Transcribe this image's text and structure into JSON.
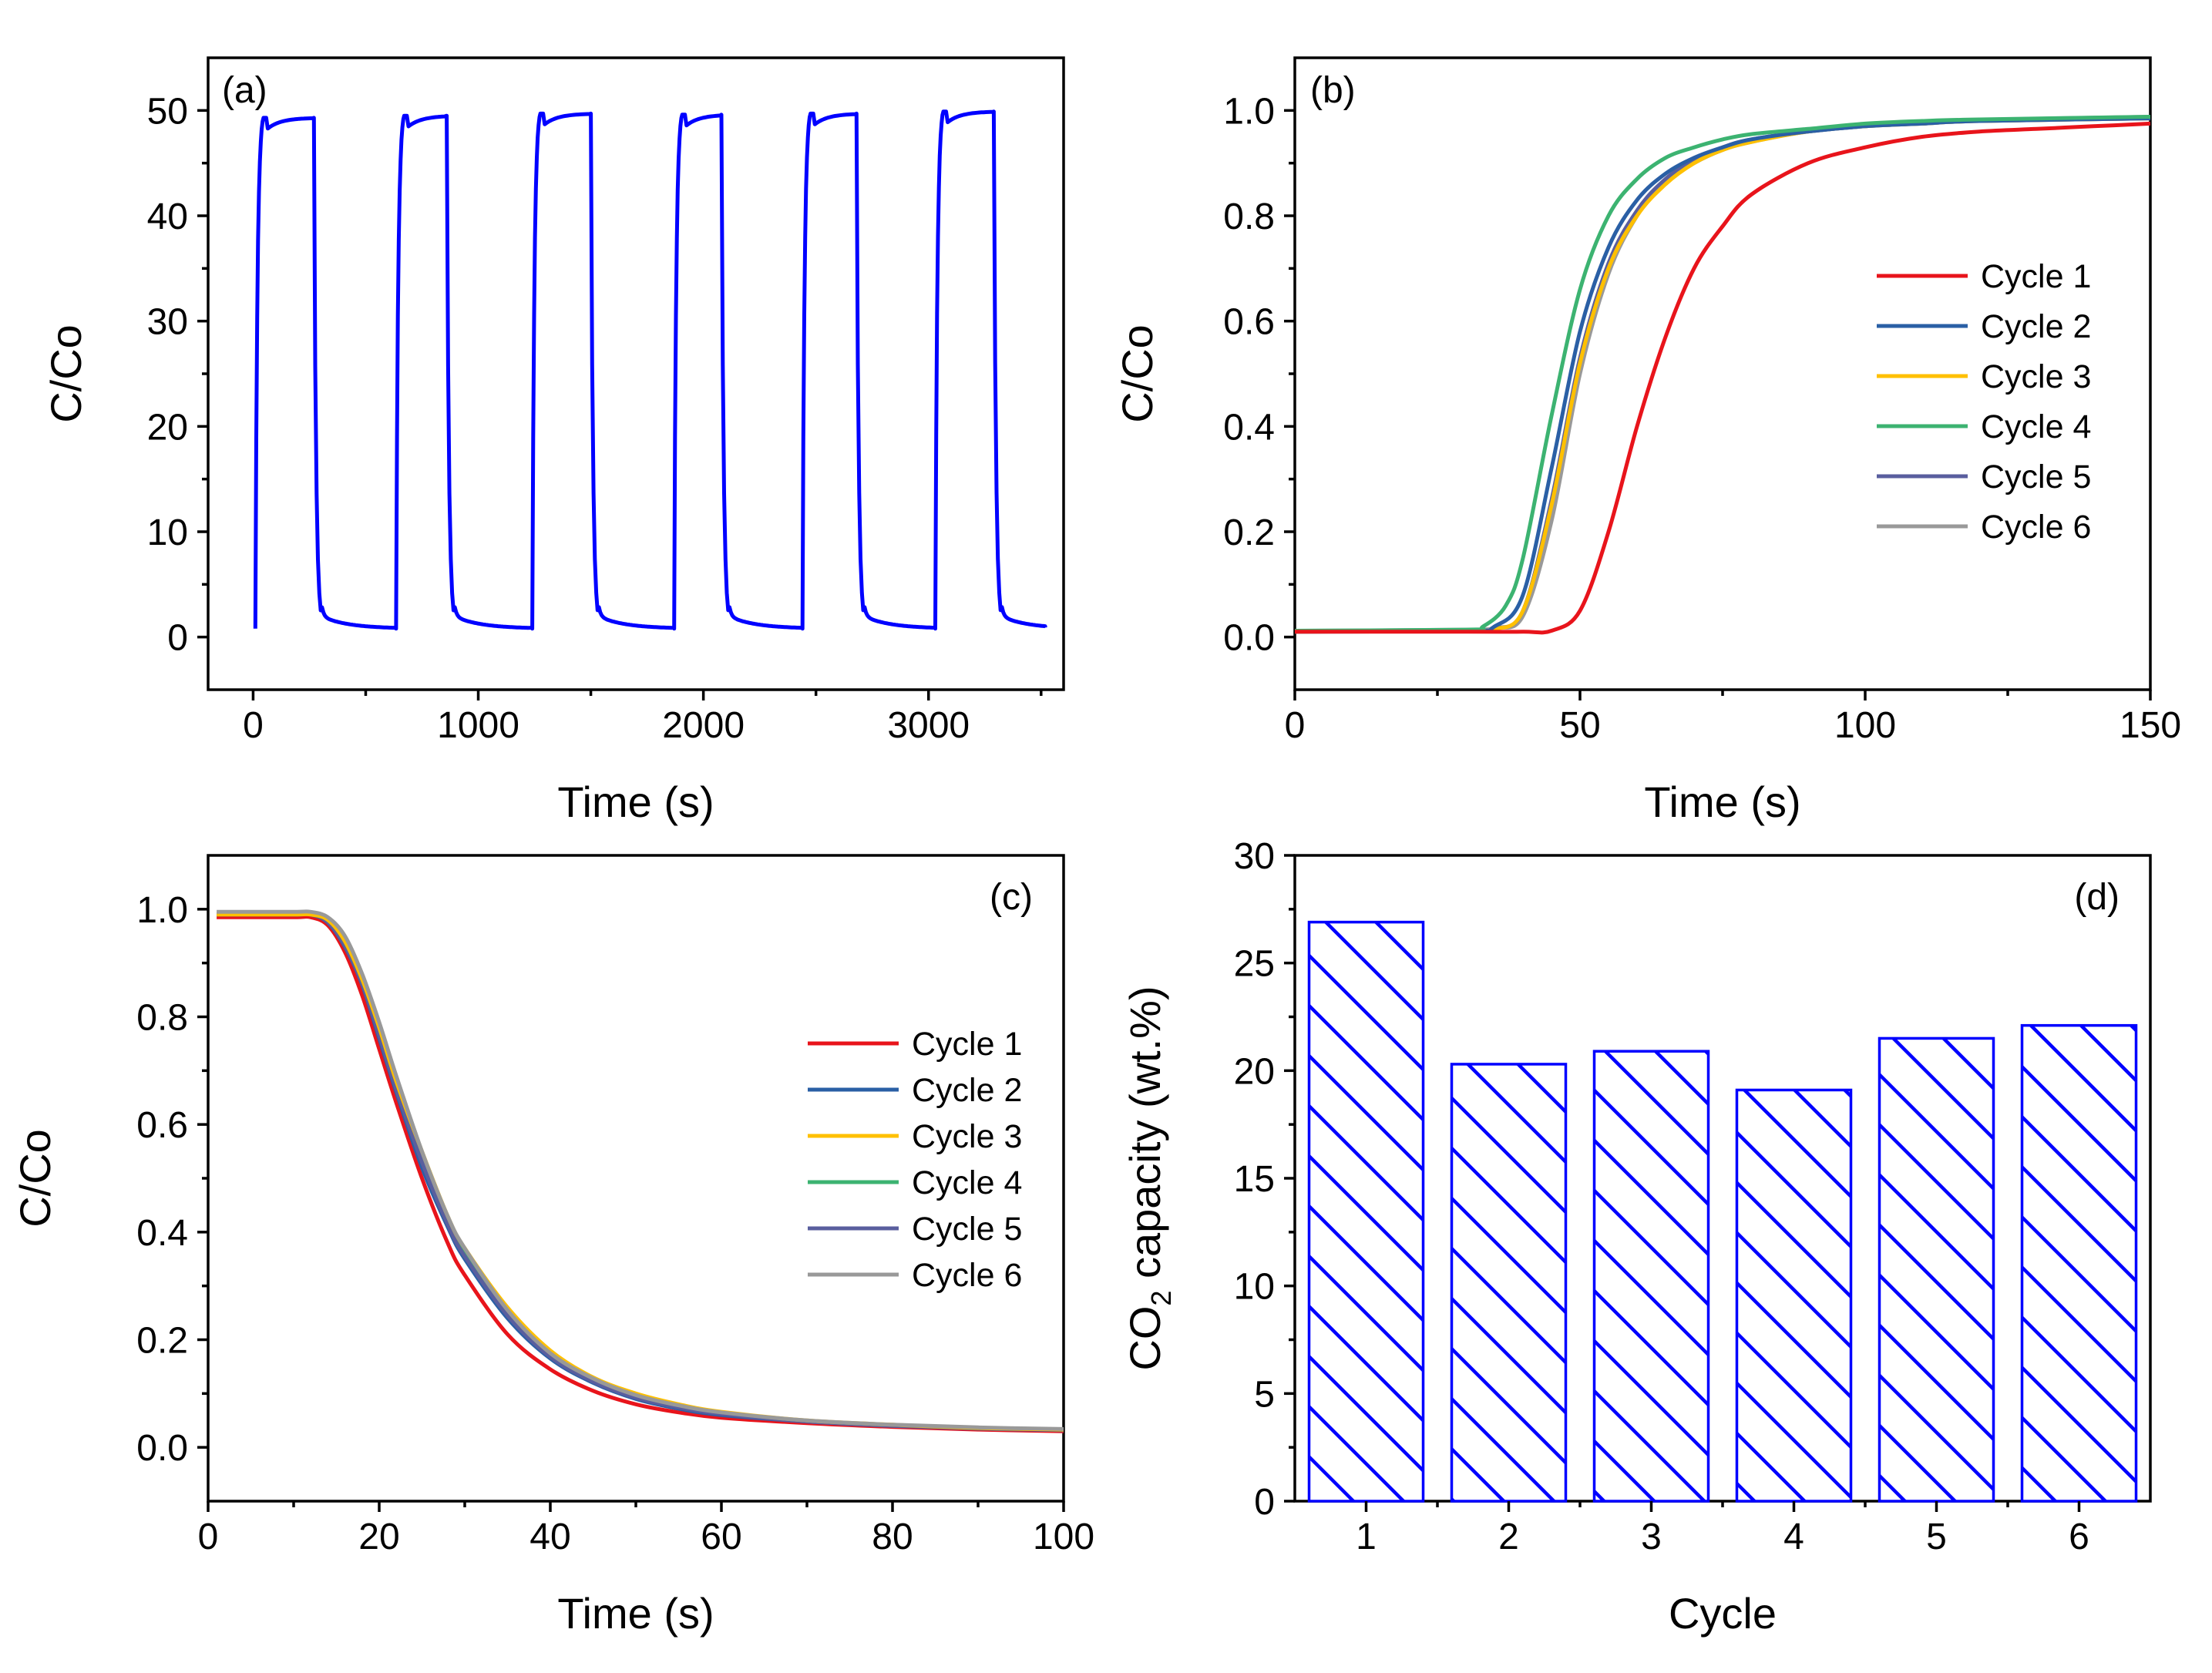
{
  "chart_data": [
    {
      "id": "a",
      "type": "line",
      "panel_label": "(a)",
      "xlabel": "Time (s)",
      "ylabel": "C/Co",
      "xlim": [
        -200,
        3600
      ],
      "ylim": [
        -5,
        55
      ],
      "xticks": [
        0,
        1000,
        2000,
        3000
      ],
      "yticks": [
        0,
        10,
        20,
        30,
        40,
        50
      ],
      "color": "#0000ff",
      "cycles": [
        {
          "start": 10,
          "end": 270,
          "plateau": 49.3
        },
        {
          "start": 635,
          "end": 860,
          "plateau": 49.5
        },
        {
          "start": 1240,
          "end": 1500,
          "plateau": 49.7
        },
        {
          "start": 1870,
          "end": 2080,
          "plateau": 49.6
        },
        {
          "start": 2440,
          "end": 2680,
          "plateau": 49.7
        },
        {
          "start": 3030,
          "end": 3290,
          "plateau": 49.9
        }
      ],
      "baseline": 0.8,
      "x_end": 3520
    },
    {
      "id": "b",
      "type": "line",
      "panel_label": "(b)",
      "xlabel": "Time (s)",
      "ylabel": "C/Co",
      "xlim": [
        0,
        150
      ],
      "ylim": [
        -0.1,
        1.1
      ],
      "xticks": [
        0,
        50,
        100,
        150
      ],
      "yticks": [
        0.0,
        0.2,
        0.4,
        0.6,
        0.8,
        1.0
      ],
      "legend_position": "center-right",
      "series": [
        {
          "name": "Cycle 1",
          "color": "#e8141b",
          "x": [
            0,
            30,
            40,
            45,
            50,
            55,
            60,
            65,
            70,
            75,
            80,
            90,
            100,
            110,
            120,
            130,
            140,
            150
          ],
          "y": [
            0.01,
            0.01,
            0.01,
            0.012,
            0.05,
            0.2,
            0.4,
            0.57,
            0.7,
            0.78,
            0.84,
            0.9,
            0.93,
            0.95,
            0.96,
            0.965,
            0.97,
            0.975
          ]
        },
        {
          "name": "Cycle 2",
          "color": "#2a5fa5",
          "x": [
            0,
            30,
            35,
            40,
            45,
            50,
            55,
            60,
            65,
            70,
            75,
            80,
            90,
            100,
            110,
            120,
            150
          ],
          "y": [
            0.01,
            0.012,
            0.02,
            0.08,
            0.32,
            0.58,
            0.74,
            0.83,
            0.88,
            0.91,
            0.93,
            0.945,
            0.96,
            0.97,
            0.975,
            0.98,
            0.985
          ]
        },
        {
          "name": "Cycle 3",
          "color": "#ffc000",
          "x": [
            0,
            30,
            35,
            40,
            45,
            50,
            55,
            60,
            65,
            70,
            75,
            80,
            90,
            100,
            110,
            120,
            150
          ],
          "y": [
            0.01,
            0.012,
            0.015,
            0.05,
            0.25,
            0.52,
            0.7,
            0.8,
            0.86,
            0.9,
            0.925,
            0.94,
            0.96,
            0.97,
            0.975,
            0.98,
            0.985
          ]
        },
        {
          "name": "Cycle 4",
          "color": "#3cb371",
          "x": [
            0,
            30,
            33,
            37,
            40,
            45,
            50,
            55,
            60,
            65,
            70,
            75,
            80,
            90,
            100,
            110,
            120,
            150
          ],
          "y": [
            0.012,
            0.014,
            0.02,
            0.06,
            0.15,
            0.42,
            0.66,
            0.8,
            0.87,
            0.91,
            0.93,
            0.945,
            0.955,
            0.965,
            0.975,
            0.98,
            0.983,
            0.988
          ]
        },
        {
          "name": "Cycle 5",
          "color": "#595e9e",
          "x": [
            0,
            30,
            35,
            40,
            45,
            50,
            55,
            60,
            65,
            70,
            75,
            80,
            90,
            100,
            110,
            120,
            150
          ],
          "y": [
            0.01,
            0.012,
            0.016,
            0.05,
            0.26,
            0.53,
            0.71,
            0.81,
            0.87,
            0.905,
            0.93,
            0.945,
            0.96,
            0.97,
            0.975,
            0.98,
            0.985
          ]
        },
        {
          "name": "Cycle 6",
          "color": "#999999",
          "x": [
            0,
            30,
            35,
            40,
            45,
            50,
            55,
            60,
            65,
            70,
            75,
            80,
            90,
            100,
            110,
            120,
            150
          ],
          "y": [
            0.012,
            0.014,
            0.018,
            0.04,
            0.22,
            0.5,
            0.69,
            0.8,
            0.865,
            0.9,
            0.925,
            0.94,
            0.96,
            0.97,
            0.978,
            0.982,
            0.988
          ]
        }
      ]
    },
    {
      "id": "c",
      "type": "line",
      "panel_label": "(c)",
      "xlabel": "Time (s)",
      "ylabel": "C/Co",
      "xlim": [
        0,
        100
      ],
      "ylim": [
        -0.1,
        1.1
      ],
      "xticks": [
        0,
        20,
        40,
        60,
        80,
        100
      ],
      "yticks": [
        0.0,
        0.2,
        0.4,
        0.6,
        0.8,
        1.0
      ],
      "legend_position": "center-right",
      "series": [
        {
          "name": "Cycle 1",
          "color": "#e8141b",
          "x": [
            1,
            10,
            12,
            14,
            16,
            18,
            20,
            22,
            25,
            28,
            30,
            35,
            40,
            45,
            50,
            55,
            60,
            70,
            80,
            90,
            100
          ],
          "y": [
            0.985,
            0.985,
            0.985,
            0.97,
            0.92,
            0.84,
            0.74,
            0.64,
            0.5,
            0.38,
            0.32,
            0.21,
            0.145,
            0.105,
            0.08,
            0.065,
            0.055,
            0.045,
            0.038,
            0.033,
            0.03
          ]
        },
        {
          "name": "Cycle 2",
          "color": "#2a5fa5",
          "x": [
            1,
            10,
            12,
            14,
            16,
            18,
            20,
            22,
            25,
            28,
            30,
            35,
            40,
            45,
            50,
            55,
            60,
            70,
            80,
            90,
            100
          ],
          "y": [
            0.99,
            0.99,
            0.99,
            0.975,
            0.93,
            0.86,
            0.76,
            0.66,
            0.52,
            0.41,
            0.35,
            0.24,
            0.165,
            0.12,
            0.09,
            0.072,
            0.06,
            0.048,
            0.04,
            0.035,
            0.032
          ]
        },
        {
          "name": "Cycle 3",
          "color": "#ffc000",
          "x": [
            1,
            10,
            12,
            14,
            16,
            18,
            20,
            22,
            25,
            28,
            30,
            35,
            40,
            45,
            50,
            55,
            60,
            70,
            80,
            90,
            100
          ],
          "y": [
            0.99,
            0.99,
            0.99,
            0.98,
            0.94,
            0.87,
            0.78,
            0.68,
            0.55,
            0.43,
            0.37,
            0.26,
            0.18,
            0.13,
            0.1,
            0.08,
            0.066,
            0.05,
            0.042,
            0.036,
            0.033
          ]
        },
        {
          "name": "Cycle 4",
          "color": "#3cb371",
          "x": [
            1,
            10,
            12,
            14,
            16,
            18,
            20,
            22,
            25,
            28,
            30,
            35,
            40,
            45,
            50,
            55,
            60,
            70,
            80,
            90,
            100
          ],
          "y": [
            0.99,
            0.99,
            0.99,
            0.978,
            0.935,
            0.865,
            0.77,
            0.67,
            0.535,
            0.42,
            0.36,
            0.25,
            0.172,
            0.125,
            0.095,
            0.076,
            0.063,
            0.049,
            0.041,
            0.036,
            0.033
          ]
        },
        {
          "name": "Cycle 5",
          "color": "#595e9e",
          "x": [
            1,
            10,
            12,
            14,
            16,
            18,
            20,
            22,
            25,
            28,
            30,
            35,
            40,
            45,
            50,
            55,
            60,
            70,
            80,
            90,
            100
          ],
          "y": [
            0.99,
            0.99,
            0.99,
            0.976,
            0.932,
            0.862,
            0.765,
            0.665,
            0.53,
            0.415,
            0.355,
            0.245,
            0.168,
            0.122,
            0.092,
            0.074,
            0.062,
            0.048,
            0.04,
            0.035,
            0.032
          ]
        },
        {
          "name": "Cycle 6",
          "color": "#999999",
          "x": [
            1,
            10,
            12,
            14,
            16,
            18,
            20,
            22,
            25,
            28,
            30,
            35,
            40,
            45,
            50,
            55,
            60,
            70,
            80,
            90,
            100
          ],
          "y": [
            0.995,
            0.995,
            0.995,
            0.985,
            0.95,
            0.88,
            0.79,
            0.69,
            0.55,
            0.43,
            0.37,
            0.255,
            0.175,
            0.128,
            0.097,
            0.078,
            0.065,
            0.05,
            0.042,
            0.037,
            0.034
          ]
        }
      ]
    },
    {
      "id": "d",
      "type": "bar",
      "panel_label": "(d)",
      "xlabel": "Cycle",
      "ylabel_prefix": "CO",
      "ylabel_sub": "2",
      "ylabel_suffix": " capacity (wt.%)",
      "categories": [
        "1",
        "2",
        "3",
        "4",
        "5",
        "6"
      ],
      "values": [
        26.9,
        20.3,
        20.9,
        19.1,
        21.5,
        22.1
      ],
      "ylim": [
        0,
        30
      ],
      "yticks": [
        0,
        5,
        10,
        15,
        20,
        25,
        30
      ],
      "color": "#0000ff",
      "hatch": "diagonal"
    }
  ]
}
